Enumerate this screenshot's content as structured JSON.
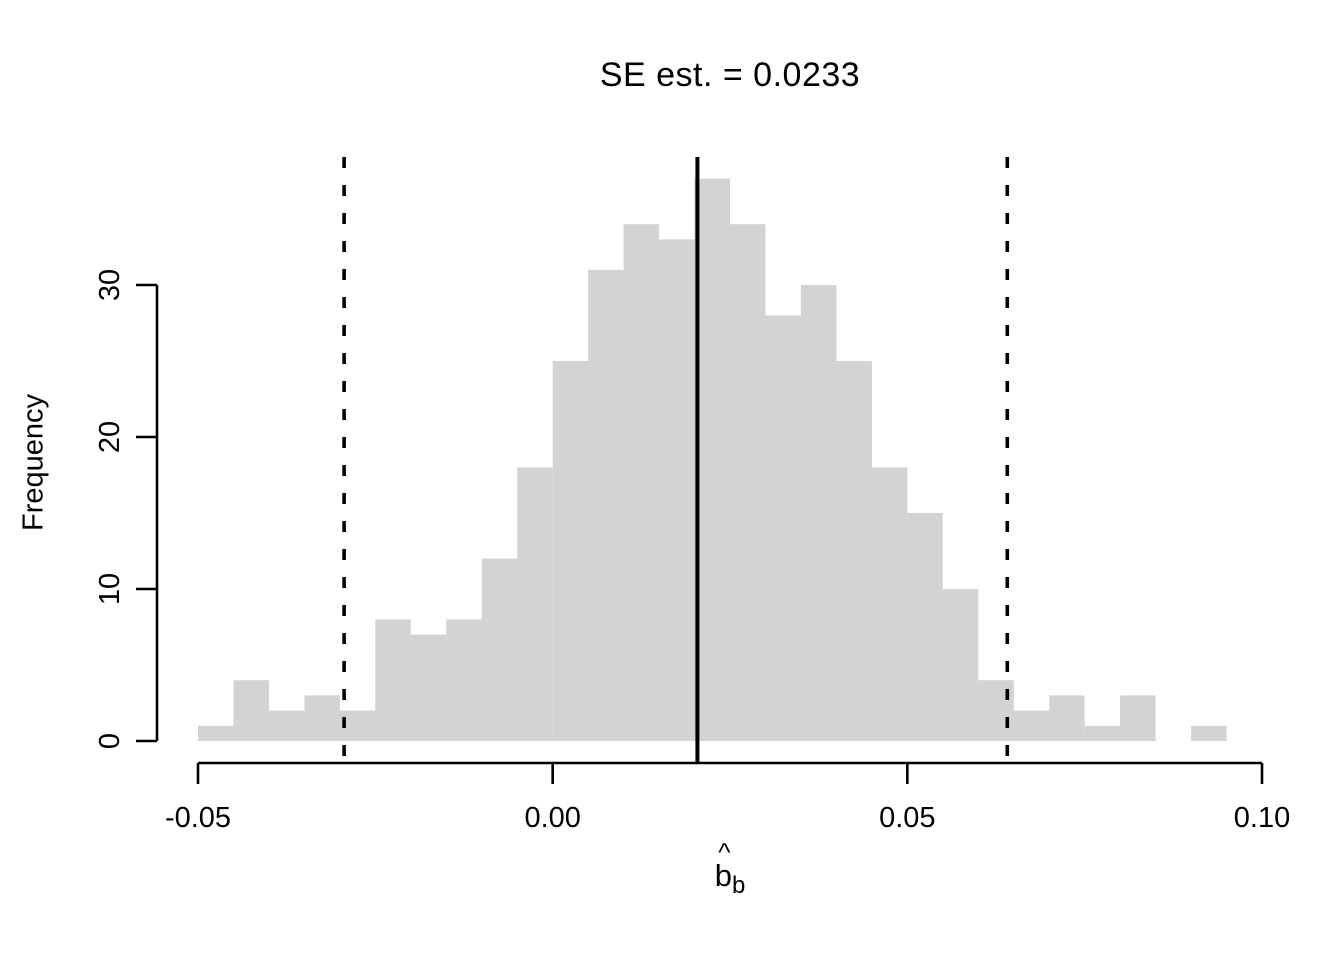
{
  "title": "SE est. = 0.0233",
  "ylabel": "Frequency",
  "xlabel": {
    "base": "b",
    "hat": "^",
    "subscript": "b"
  },
  "colors": {
    "background": "#ffffff",
    "bar_fill": "#d3d3d3",
    "axis_line": "#000000",
    "reference_line": "#000000",
    "text": "#000000"
  },
  "chart_data": {
    "type": "bar",
    "subtype": "histogram",
    "title": "SE est. = 0.0233",
    "xlabel": "b-hat subscript b",
    "ylabel": "Frequency",
    "grid": false,
    "legend_position": "none",
    "xlim": [
      -0.05,
      0.1
    ],
    "ylim": [
      0,
      30
    ],
    "bin_start": -0.05,
    "bin_width": 0.005,
    "counts": [
      1,
      4,
      2,
      3,
      2,
      8,
      7,
      8,
      12,
      18,
      25,
      31,
      34,
      33,
      37,
      34,
      28,
      30,
      25,
      18,
      15,
      10,
      4,
      2,
      3,
      1,
      3,
      0,
      1
    ],
    "x_ticks": [
      {
        "value": -0.05,
        "label": "-0.05"
      },
      {
        "value": 0.0,
        "label": "0.00"
      },
      {
        "value": 0.05,
        "label": "0.05"
      },
      {
        "value": 0.1,
        "label": "0.10"
      }
    ],
    "y_ticks": [
      {
        "value": 0,
        "label": "0"
      },
      {
        "value": 10,
        "label": "10"
      },
      {
        "value": 20,
        "label": "20"
      },
      {
        "value": 30,
        "label": "30"
      }
    ],
    "vlines": [
      {
        "name": "estimate-line",
        "style": "solid",
        "value": 0.0204
      },
      {
        "name": "ci-lower-line",
        "style": "dashed",
        "value": -0.0294
      },
      {
        "name": "ci-upper-line",
        "style": "dashed",
        "value": 0.0641
      }
    ]
  }
}
